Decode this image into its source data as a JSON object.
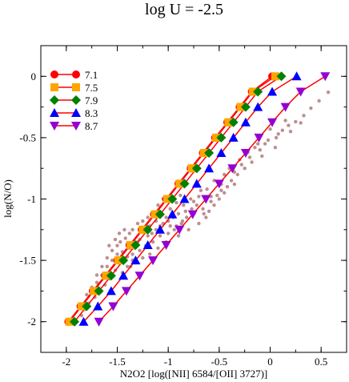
{
  "chart_data": {
    "type": "line",
    "title": "log U = -2.5",
    "xlabel": "N2O2 [log([NII] 6584/[OII] 3727)]",
    "ylabel": "log(N/O)",
    "xlim": [
      -2.25,
      0.75
    ],
    "ylim": [
      -2.25,
      0.25
    ],
    "x_ticks": [
      -2,
      -1.5,
      -1,
      -0.5,
      0,
      0.5
    ],
    "x_tick_labels": [
      "-2",
      "-1.5",
      "-1",
      "-0.5",
      "0",
      "0.5"
    ],
    "y_ticks": [
      0,
      -0.5,
      -1,
      -1.5,
      -2
    ],
    "y_tick_labels": [
      "0",
      "-0.5",
      "-1",
      "-1.5",
      "-2"
    ],
    "grid": false,
    "legend_position": "top-left",
    "line_color": "#ff0000",
    "scatter_color": "#bc8f8f",
    "y_levels": [
      -2.0,
      -1.875,
      -1.75,
      -1.625,
      -1.5,
      -1.375,
      -1.25,
      -1.125,
      -1.0,
      -0.875,
      -0.75,
      -0.625,
      -0.5,
      -0.375,
      -0.25,
      -0.125,
      0.0
    ],
    "series": [
      {
        "name": "7.1",
        "marker": "circle",
        "color": "#ff0000",
        "x": [
          -1.98,
          -1.86,
          -1.74,
          -1.62,
          -1.5,
          -1.38,
          -1.26,
          -1.14,
          -1.02,
          -0.9,
          -0.78,
          -0.66,
          -0.54,
          -0.42,
          -0.3,
          -0.18,
          0.02
        ]
      },
      {
        "name": "7.5",
        "marker": "square",
        "color": "#ffa500",
        "x": [
          -1.97,
          -1.85,
          -1.73,
          -1.61,
          -1.49,
          -1.37,
          -1.25,
          -1.13,
          -1.01,
          -0.89,
          -0.77,
          -0.65,
          -0.53,
          -0.41,
          -0.29,
          -0.17,
          0.05
        ]
      },
      {
        "name": "7.9",
        "marker": "diamond",
        "color": "#008000",
        "x": [
          -1.92,
          -1.8,
          -1.68,
          -1.56,
          -1.44,
          -1.32,
          -1.2,
          -1.08,
          -0.96,
          -0.84,
          -0.72,
          -0.6,
          -0.48,
          -0.36,
          -0.24,
          -0.12,
          0.11
        ]
      },
      {
        "name": "8.3",
        "marker": "triangle-up",
        "color": "#0000ff",
        "x": [
          -1.83,
          -1.69,
          -1.56,
          -1.44,
          -1.32,
          -1.2,
          -1.08,
          -0.96,
          -0.84,
          -0.72,
          -0.6,
          -0.48,
          -0.36,
          -0.24,
          -0.12,
          0.02,
          0.26
        ]
      },
      {
        "name": "8.7",
        "marker": "triangle-down",
        "color": "#9400d3",
        "x": [
          -1.68,
          -1.54,
          -1.41,
          -1.28,
          -1.15,
          -1.02,
          -0.89,
          -0.76,
          -0.63,
          -0.5,
          -0.37,
          -0.24,
          -0.11,
          0.02,
          0.15,
          0.3,
          0.54
        ]
      }
    ],
    "scatter": {
      "name": "observations",
      "points": [
        [
          0.57,
          -0.13
        ],
        [
          0.48,
          -0.2
        ],
        [
          0.4,
          -0.26
        ],
        [
          0.33,
          -0.32
        ],
        [
          0.25,
          -0.37
        ],
        [
          0.18,
          -0.4
        ],
        [
          0.12,
          -0.44
        ],
        [
          0.06,
          -0.5
        ],
        [
          0.0,
          -0.43
        ],
        [
          -0.05,
          -0.55
        ],
        [
          -0.1,
          -0.6
        ],
        [
          -0.15,
          -0.58
        ],
        [
          -0.2,
          -0.66
        ],
        [
          -0.25,
          -0.75
        ],
        [
          -0.28,
          -0.72
        ],
        [
          -0.32,
          -0.8
        ],
        [
          -0.35,
          -0.78
        ],
        [
          -0.38,
          -0.85
        ],
        [
          -0.42,
          -0.9
        ],
        [
          -0.45,
          -0.95
        ],
        [
          -0.48,
          -0.88
        ],
        [
          -0.5,
          -1.0
        ],
        [
          -0.52,
          -0.97
        ],
        [
          -0.55,
          -1.05
        ],
        [
          -0.58,
          -1.02
        ],
        [
          -0.6,
          -1.1
        ],
        [
          -0.63,
          -1.15
        ],
        [
          -0.66,
          -1.08
        ],
        [
          -0.7,
          -1.2
        ],
        [
          -0.72,
          -1.05
        ],
        [
          -0.75,
          -1.12
        ],
        [
          -0.78,
          -1.0
        ],
        [
          -0.8,
          -1.25
        ],
        [
          -0.83,
          -1.1
        ],
        [
          -0.86,
          -1.18
        ],
        [
          -0.88,
          -0.97
        ],
        [
          -0.9,
          -1.3
        ],
        [
          -0.92,
          -1.22
        ],
        [
          -0.95,
          -1.15
        ],
        [
          -0.98,
          -1.08
        ],
        [
          -1.0,
          -1.28
        ],
        [
          -1.02,
          -1.35
        ],
        [
          -1.05,
          -1.2
        ],
        [
          -1.08,
          -1.3
        ],
        [
          -1.1,
          -1.4
        ],
        [
          -1.12,
          -1.25
        ],
        [
          -1.15,
          -1.35
        ],
        [
          -1.18,
          -1.45
        ],
        [
          -1.2,
          -1.3
        ],
        [
          -1.22,
          -1.38
        ],
        [
          -1.25,
          -1.48
        ],
        [
          -1.28,
          -1.42
        ],
        [
          -1.3,
          -1.35
        ],
        [
          -1.32,
          -1.52
        ],
        [
          -1.35,
          -1.45
        ],
        [
          -1.38,
          -1.4
        ],
        [
          -1.4,
          -1.55
        ],
        [
          -1.42,
          -1.48
        ],
        [
          -1.45,
          -1.6
        ],
        [
          -1.48,
          -1.52
        ],
        [
          -1.5,
          -1.45
        ],
        [
          -1.52,
          -1.58
        ],
        [
          -1.55,
          -1.5
        ],
        [
          -1.58,
          -1.65
        ],
        [
          -1.6,
          -1.55
        ],
        [
          -1.62,
          -1.7
        ],
        [
          -1.65,
          -1.62
        ],
        [
          -1.68,
          -1.75
        ],
        [
          -1.7,
          -1.68
        ],
        [
          -1.72,
          -1.8
        ],
        [
          -1.75,
          -1.72
        ],
        [
          -1.78,
          -1.85
        ],
        [
          -1.8,
          -1.78
        ],
        [
          -1.82,
          -1.9
        ],
        [
          -1.85,
          -1.95
        ],
        [
          -1.47,
          -1.35
        ],
        [
          -1.42,
          -1.32
        ],
        [
          -1.38,
          -1.28
        ],
        [
          -1.35,
          -1.25
        ],
        [
          -1.3,
          -1.2
        ],
        [
          -1.25,
          -1.18
        ],
        [
          -1.2,
          -1.15
        ],
        [
          -1.15,
          -1.12
        ],
        [
          -1.1,
          -1.05
        ],
        [
          -1.05,
          -1.0
        ],
        [
          -0.68,
          -0.93
        ],
        [
          -0.62,
          -0.92
        ],
        [
          -0.55,
          -0.85
        ],
        [
          -0.45,
          -0.8
        ],
        [
          -0.4,
          -0.75
        ],
        [
          -0.3,
          -0.68
        ],
        [
          -0.22,
          -0.62
        ],
        [
          -0.12,
          -0.55
        ],
        [
          -0.02,
          -0.52
        ],
        [
          0.08,
          -0.47
        ],
        [
          0.15,
          -0.36
        ],
        [
          -0.9,
          -1.12
        ],
        [
          -0.85,
          -1.05
        ],
        [
          -0.75,
          -1.02
        ],
        [
          -0.7,
          -0.98
        ],
        [
          -0.65,
          -1.12
        ],
        [
          -1.6,
          -1.48
        ],
        [
          -1.55,
          -1.42
        ],
        [
          -1.5,
          -1.38
        ],
        [
          -1.45,
          -1.43
        ],
        [
          -1.4,
          -1.47
        ],
        [
          -1.35,
          -1.5
        ],
        [
          -1.25,
          -1.25
        ],
        [
          -1.18,
          -1.22
        ],
        [
          -1.12,
          -1.18
        ],
        [
          -1.02,
          -1.15
        ],
        [
          -0.98,
          -1.22
        ],
        [
          -0.92,
          -1.03
        ],
        [
          -0.82,
          -1.15
        ],
        [
          -0.77,
          -1.08
        ],
        [
          -0.58,
          -0.98
        ],
        [
          -0.48,
          -0.93
        ],
        [
          -0.35,
          -0.88
        ],
        [
          -0.18,
          -0.7
        ],
        [
          -0.08,
          -0.65
        ],
        [
          0.05,
          -0.58
        ],
        [
          0.2,
          -0.45
        ],
        [
          0.3,
          -0.38
        ],
        [
          -1.65,
          -1.55
        ],
        [
          -1.7,
          -1.62
        ],
        [
          -1.58,
          -1.38
        ],
        [
          -1.52,
          -1.33
        ],
        [
          -1.48,
          -1.28
        ],
        [
          -1.43,
          -1.25
        ],
        [
          -1.37,
          -1.55
        ],
        [
          -1.33,
          -1.4
        ],
        [
          -1.28,
          -1.33
        ],
        [
          -1.22,
          -1.27
        ],
        [
          -1.16,
          -1.28
        ],
        [
          -1.08,
          -1.22
        ],
        [
          -1.0,
          -1.18
        ],
        [
          -0.94,
          -1.25
        ],
        [
          -0.87,
          -1.2
        ]
      ]
    }
  }
}
